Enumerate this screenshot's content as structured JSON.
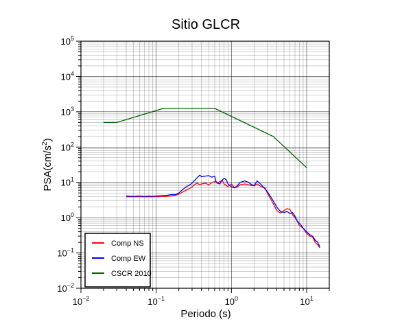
{
  "chart_data": {
    "type": "line",
    "title": "Sitio GLCR",
    "xlabel": "Periodo (s)",
    "ylabel": {
      "prefix": "PSA(cm/s",
      "sup": "2",
      "suffix": ")"
    },
    "xscale": "log",
    "yscale": "log",
    "xlim": [
      0.01,
      20
    ],
    "ylim": [
      0.01,
      100000
    ],
    "grid": true,
    "x_ticks": [
      {
        "value": 0.01,
        "base": "10",
        "exp": "−2"
      },
      {
        "value": 0.1,
        "base": "10",
        "exp": "−1"
      },
      {
        "value": 1,
        "base": "10",
        "exp": "0"
      },
      {
        "value": 10,
        "base": "10",
        "exp": "1"
      }
    ],
    "y_ticks": [
      {
        "value": 0.01,
        "base": "10",
        "exp": "−2"
      },
      {
        "value": 0.1,
        "base": "10",
        "exp": "−1"
      },
      {
        "value": 1,
        "base": "10",
        "exp": "0"
      },
      {
        "value": 10,
        "base": "10",
        "exp": "1"
      },
      {
        "value": 100,
        "base": "10",
        "exp": "2"
      },
      {
        "value": 1000,
        "base": "10",
        "exp": "3"
      },
      {
        "value": 10000,
        "base": "10",
        "exp": "4"
      },
      {
        "value": 100000,
        "base": "10",
        "exp": "5"
      }
    ],
    "legend_position": "bottom-left",
    "series": [
      {
        "name": "Comp NS",
        "color": "#ff0000",
        "points": [
          [
            0.04,
            3.9
          ],
          [
            0.05,
            3.9
          ],
          [
            0.06,
            3.9
          ],
          [
            0.07,
            3.9
          ],
          [
            0.08,
            3.9
          ],
          [
            0.09,
            3.9
          ],
          [
            0.1,
            3.9
          ],
          [
            0.12,
            4.0
          ],
          [
            0.14,
            4.0
          ],
          [
            0.16,
            4.1
          ],
          [
            0.18,
            4.3
          ],
          [
            0.2,
            4.6
          ],
          [
            0.22,
            5.2
          ],
          [
            0.25,
            6.0
          ],
          [
            0.28,
            6.8
          ],
          [
            0.3,
            7.5
          ],
          [
            0.32,
            8.5
          ],
          [
            0.35,
            9.5
          ],
          [
            0.38,
            8.5
          ],
          [
            0.4,
            9.0
          ],
          [
            0.45,
            9.5
          ],
          [
            0.5,
            8.5
          ],
          [
            0.55,
            10.0
          ],
          [
            0.6,
            10.5
          ],
          [
            0.65,
            9.5
          ],
          [
            0.7,
            10.5
          ],
          [
            0.75,
            11.5
          ],
          [
            0.8,
            9.0
          ],
          [
            0.9,
            7.5
          ],
          [
            1.0,
            9.0
          ],
          [
            1.1,
            7.0
          ],
          [
            1.2,
            7.5
          ],
          [
            1.3,
            8.5
          ],
          [
            1.5,
            9.0
          ],
          [
            1.7,
            8.5
          ],
          [
            2.0,
            8.0
          ],
          [
            2.2,
            9.0
          ],
          [
            2.5,
            7.5
          ],
          [
            2.8,
            7.0
          ],
          [
            3.0,
            5.0
          ],
          [
            3.3,
            3.5
          ],
          [
            3.6,
            2.5
          ],
          [
            4.0,
            1.6
          ],
          [
            4.5,
            1.35
          ],
          [
            5.0,
            1.6
          ],
          [
            5.5,
            1.8
          ],
          [
            6.0,
            1.7
          ],
          [
            6.5,
            1.2
          ],
          [
            7.0,
            1.0
          ],
          [
            7.5,
            0.8
          ],
          [
            8.0,
            0.6
          ],
          [
            8.5,
            0.55
          ],
          [
            9.0,
            0.5
          ],
          [
            10.0,
            0.36
          ],
          [
            11.0,
            0.3
          ],
          [
            12.0,
            0.28
          ],
          [
            13.0,
            0.2
          ],
          [
            14.0,
            0.17
          ],
          [
            15.0,
            0.14
          ]
        ]
      },
      {
        "name": "Comp EW",
        "color": "#0000ff",
        "points": [
          [
            0.04,
            4.1
          ],
          [
            0.05,
            4.0
          ],
          [
            0.06,
            4.1
          ],
          [
            0.07,
            4.0
          ],
          [
            0.08,
            4.1
          ],
          [
            0.09,
            4.0
          ],
          [
            0.1,
            4.1
          ],
          [
            0.12,
            4.2
          ],
          [
            0.14,
            4.3
          ],
          [
            0.16,
            4.5
          ],
          [
            0.18,
            4.5
          ],
          [
            0.2,
            5.0
          ],
          [
            0.22,
            6.0
          ],
          [
            0.25,
            7.5
          ],
          [
            0.28,
            8.5
          ],
          [
            0.3,
            9.5
          ],
          [
            0.32,
            11.0
          ],
          [
            0.35,
            13.5
          ],
          [
            0.38,
            16.0
          ],
          [
            0.4,
            14.5
          ],
          [
            0.45,
            15.0
          ],
          [
            0.5,
            15.5
          ],
          [
            0.55,
            14.0
          ],
          [
            0.6,
            15.0
          ],
          [
            0.62,
            11.0
          ],
          [
            0.65,
            9.5
          ],
          [
            0.7,
            9.0
          ],
          [
            0.75,
            11.5
          ],
          [
            0.8,
            13.0
          ],
          [
            0.85,
            12.0
          ],
          [
            0.9,
            9.0
          ],
          [
            1.0,
            7.5
          ],
          [
            1.1,
            7.0
          ],
          [
            1.2,
            8.0
          ],
          [
            1.3,
            10.0
          ],
          [
            1.5,
            11.0
          ],
          [
            1.7,
            10.0
          ],
          [
            1.8,
            9.0
          ],
          [
            2.0,
            8.0
          ],
          [
            2.2,
            11.0
          ],
          [
            2.5,
            8.5
          ],
          [
            2.8,
            6.5
          ],
          [
            3.0,
            5.5
          ],
          [
            3.3,
            4.0
          ],
          [
            3.6,
            3.0
          ],
          [
            4.0,
            2.0
          ],
          [
            4.5,
            1.5
          ],
          [
            5.0,
            1.4
          ],
          [
            5.5,
            1.5
          ],
          [
            6.0,
            1.3
          ],
          [
            6.5,
            1.4
          ],
          [
            7.0,
            1.1
          ],
          [
            7.5,
            0.8
          ],
          [
            8.0,
            0.7
          ],
          [
            8.5,
            0.6
          ],
          [
            9.0,
            0.5
          ],
          [
            10.0,
            0.4
          ],
          [
            11.0,
            0.33
          ],
          [
            12.0,
            0.3
          ],
          [
            13.0,
            0.23
          ],
          [
            14.0,
            0.2
          ],
          [
            15.0,
            0.15
          ]
        ]
      },
      {
        "name": "CSCR 2010",
        "color": "#006400",
        "points": [
          [
            0.02,
            500
          ],
          [
            0.03,
            500
          ],
          [
            0.125,
            1250
          ],
          [
            0.6,
            1250
          ],
          [
            3.6,
            200
          ],
          [
            10.0,
            26
          ]
        ]
      }
    ]
  }
}
